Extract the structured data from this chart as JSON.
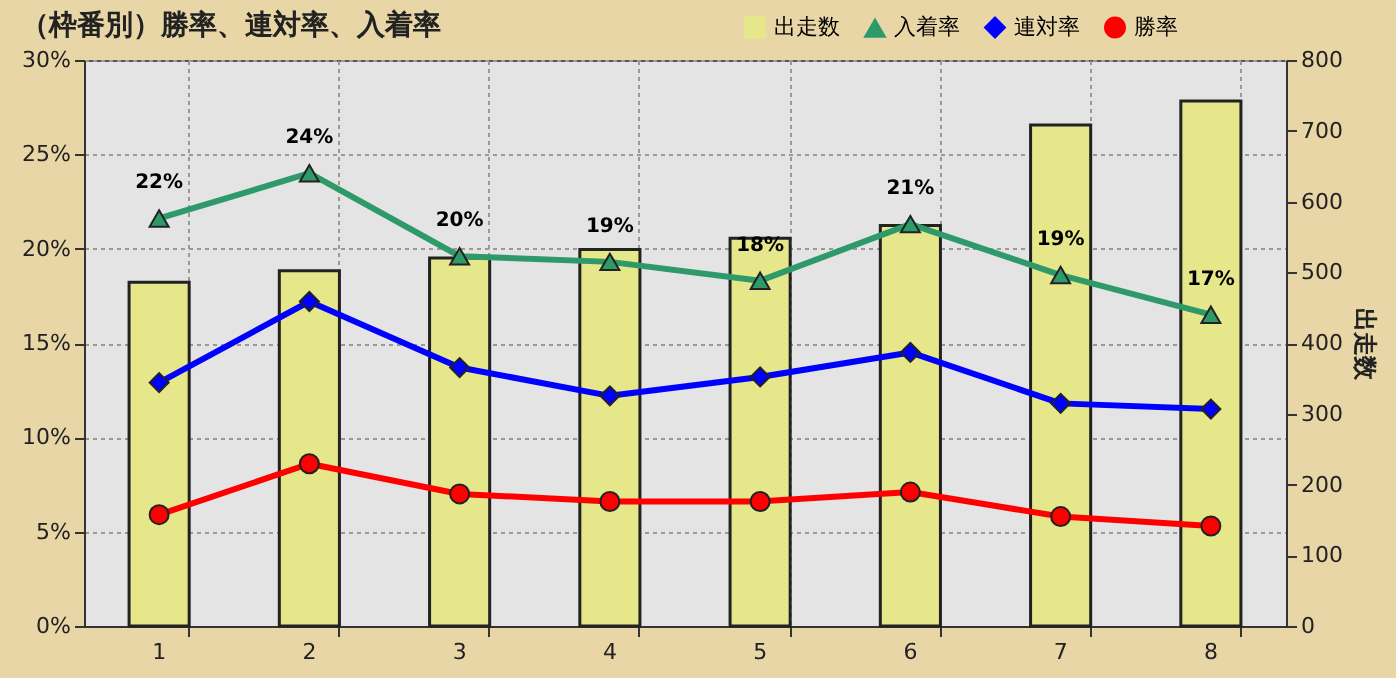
{
  "chart_data": {
    "type": "line",
    "title": "（枠番別）勝率、連対率、入着率",
    "y2label": "出走数",
    "categories": [
      "1",
      "2",
      "3",
      "4",
      "5",
      "6",
      "7",
      "8"
    ],
    "series": [
      {
        "name": "出走数",
        "type": "bar",
        "axis": "y2",
        "color": "#e6e68a",
        "values": [
          486,
          502,
          520,
          532,
          548,
          566,
          708,
          742
        ]
      },
      {
        "name": "入着率",
        "marker": "triangle",
        "color": "#2e9a6a",
        "values": [
          21.6,
          24.0,
          19.6,
          19.3,
          18.3,
          21.3,
          18.6,
          16.5
        ],
        "value_labels": [
          "22%",
          "24%",
          "20%",
          "19%",
          "18%",
          "21%",
          "19%",
          "17%"
        ]
      },
      {
        "name": "連対率",
        "marker": "diamond",
        "color": "#0000ff",
        "values": [
          12.9,
          17.2,
          13.7,
          12.2,
          13.2,
          14.5,
          11.8,
          11.5
        ]
      },
      {
        "name": "勝率",
        "marker": "circle",
        "color": "#ff0000",
        "values": [
          5.9,
          8.6,
          7.0,
          6.6,
          6.6,
          7.1,
          5.8,
          5.3
        ]
      }
    ],
    "ylim": [
      0,
      30
    ],
    "yticks": [
      {
        "value": 0,
        "label": "0%"
      },
      {
        "value": 5,
        "label": "5%"
      },
      {
        "value": 10,
        "label": "10%"
      },
      {
        "value": 15,
        "label": "15%"
      },
      {
        "value": 20,
        "label": "20%"
      },
      {
        "value": 25,
        "label": "25%"
      },
      {
        "value": 30,
        "label": "30%"
      }
    ],
    "y2lim": [
      0,
      800
    ],
    "y2ticks": [
      0,
      100,
      200,
      300,
      400,
      500,
      600,
      700,
      800
    ],
    "grid": true,
    "legend": "top right"
  }
}
